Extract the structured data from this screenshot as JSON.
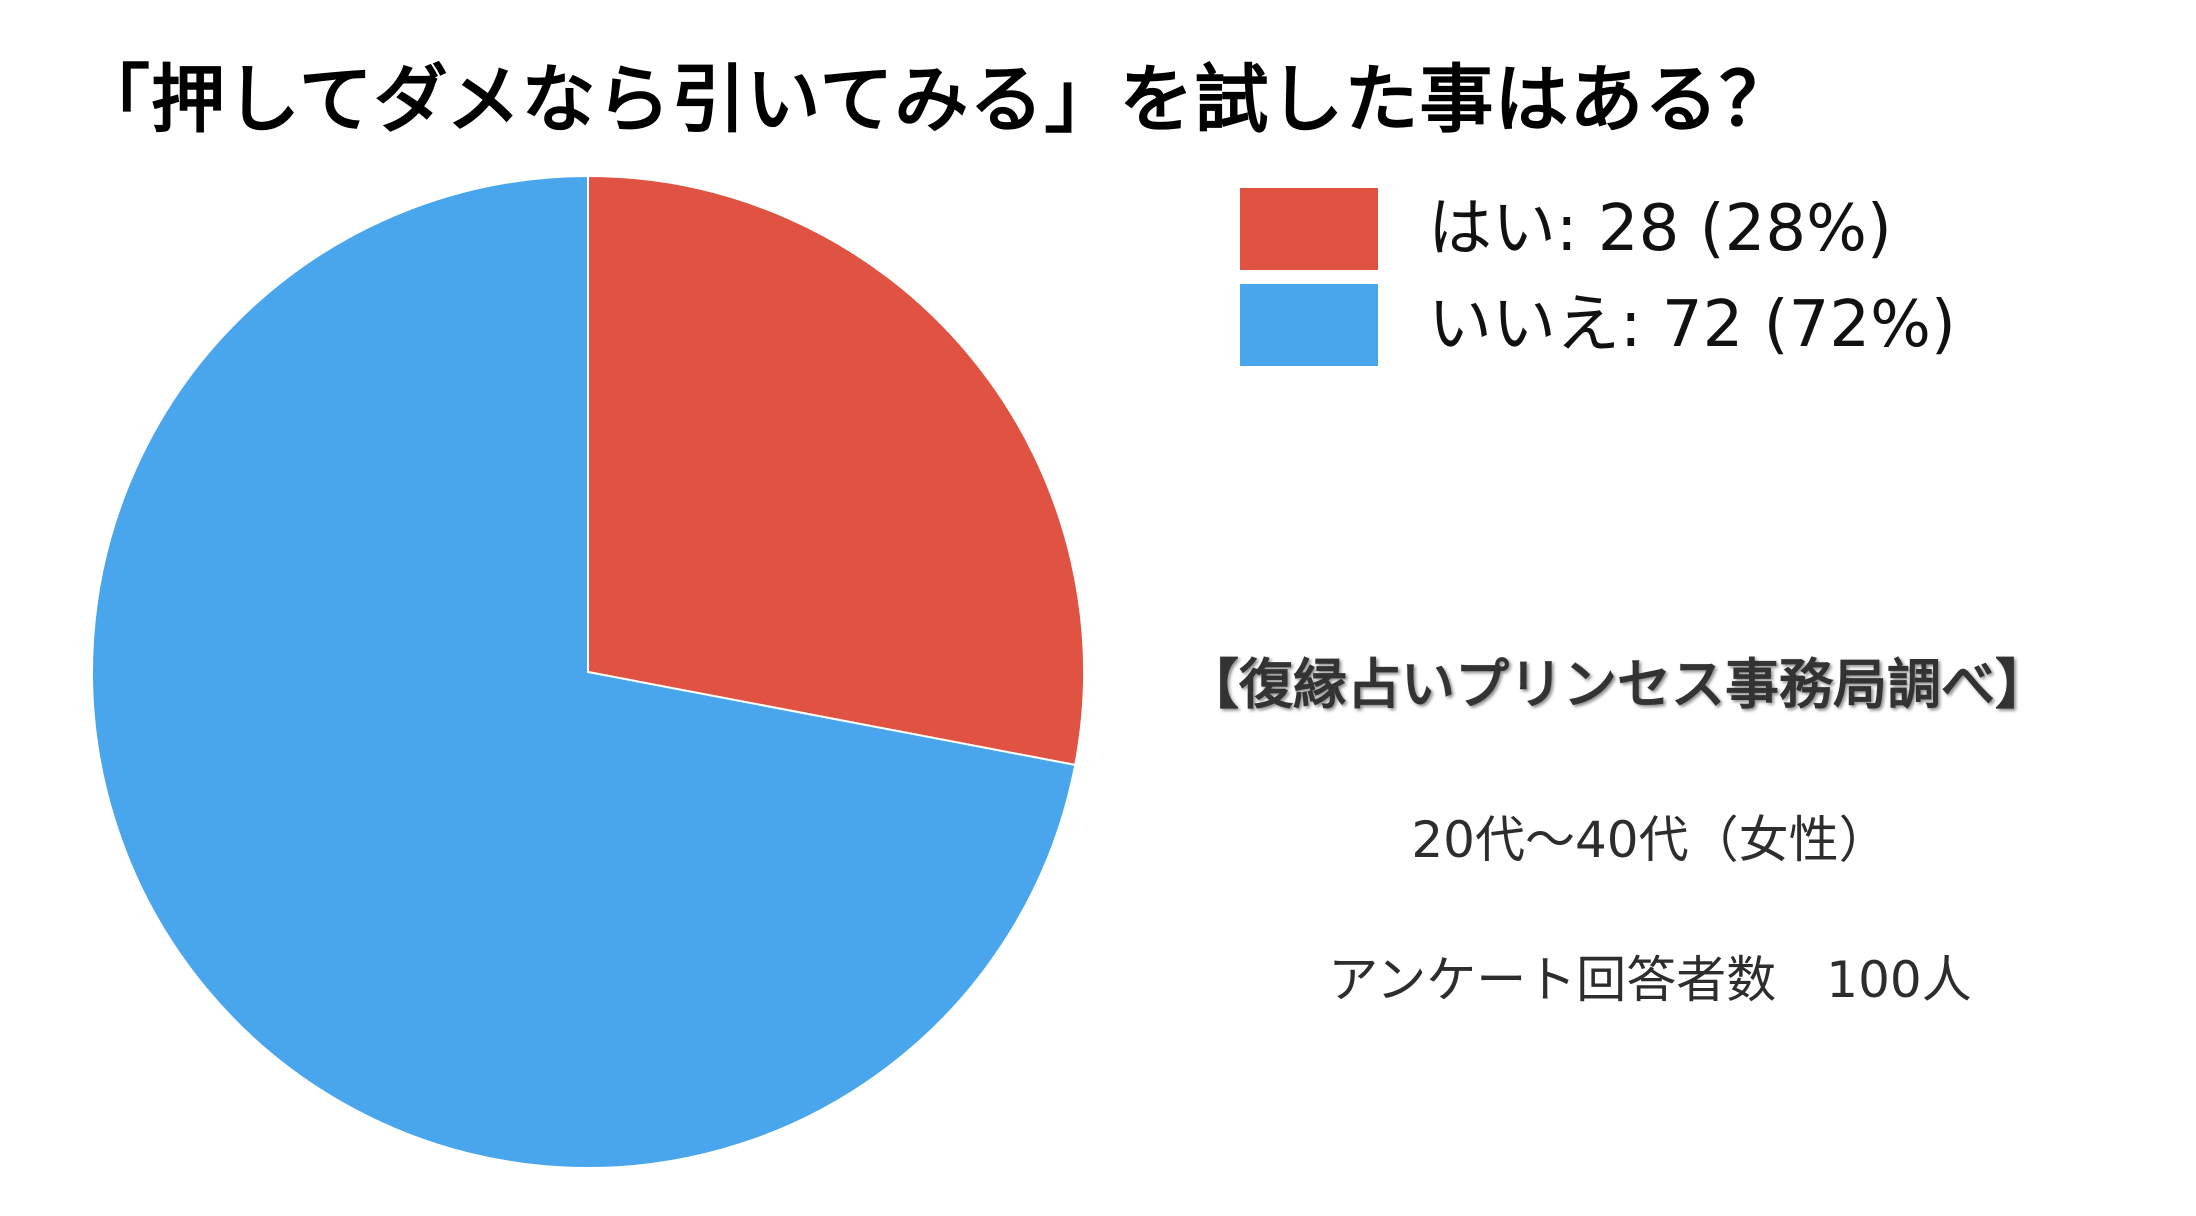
{
  "chart_data": {
    "type": "pie",
    "title": "「押してダメなら引いてみる」を試した事はある？",
    "categories": [
      "はい",
      "いいえ"
    ],
    "values": [
      28,
      72
    ],
    "percentages": [
      28,
      72
    ],
    "colors": [
      "#e05241",
      "#4aa6ec"
    ],
    "legend_labels": [
      "はい: 28 (28%)",
      "いいえ: 72 (72%)"
    ],
    "legend_position": "top-right"
  },
  "annotations": {
    "source": "【復縁占いプリンセス事務局調べ】",
    "age_group": "20代〜40代（女性）",
    "respondents": "アンケート回答者数　100人"
  }
}
